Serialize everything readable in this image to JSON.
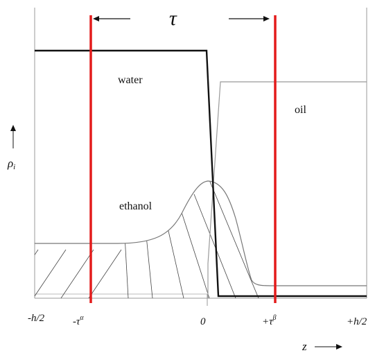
{
  "diagram": {
    "top_label": "τ",
    "vertical_axis_label": "ρ",
    "vertical_axis_subscript": "i",
    "horizontal_axis_label": "z",
    "regions": {
      "water": "water",
      "oil": "oil",
      "ethanol": "ethanol"
    },
    "ticks": {
      "left_edge": "-h/2",
      "left_interface_base": "-τ",
      "left_interface_sup": "α",
      "origin": "0",
      "right_interface_base": "+τ",
      "right_interface_sup": "β",
      "right_edge": "+h/2"
    },
    "colors": {
      "boundary": "#e31b1b",
      "water_curve": "#111111",
      "oil_curve": "#999999",
      "ethanol_curve": "#777777",
      "frame": "#999999",
      "hatch": "#444444"
    }
  }
}
